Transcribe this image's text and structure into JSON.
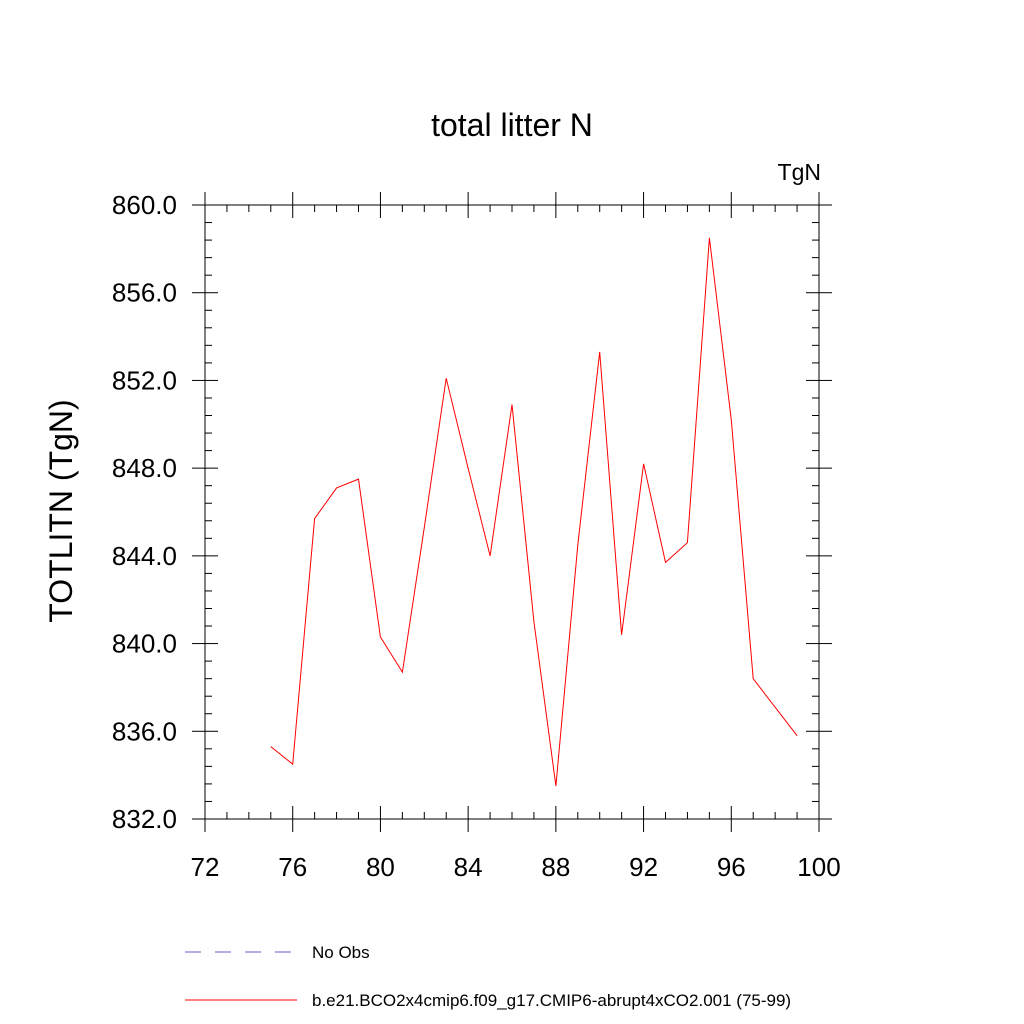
{
  "chart_data": {
    "type": "line",
    "title": "total litter N",
    "units_label": "TgN",
    "ylabel": "TOTLITN  (TgN)",
    "xlabel": "",
    "xlim": [
      72,
      100
    ],
    "ylim": [
      832,
      860
    ],
    "x_ticks": [
      72,
      76,
      80,
      84,
      88,
      92,
      96,
      100
    ],
    "x_tick_labels": [
      "72",
      "76",
      "80",
      "84",
      "88",
      "92",
      "96",
      "100"
    ],
    "y_ticks": [
      832,
      836,
      840,
      844,
      848,
      852,
      856,
      860
    ],
    "y_tick_labels": [
      "832.0",
      "836.0",
      "840.0",
      "844.0",
      "848.0",
      "852.0",
      "856.0",
      "860.0"
    ],
    "grid": false,
    "legend_position": "bottom",
    "series": [
      {
        "name": "b.e21.BCO2x4cmip6.f09_g17.CMIP6-abrupt4xCO2.001 (75-99)",
        "color": "#ff0000",
        "style": "solid",
        "x": [
          75,
          76,
          77,
          78,
          79,
          80,
          81,
          82,
          83,
          84,
          85,
          86,
          87,
          88,
          89,
          90,
          91,
          92,
          93,
          94,
          95,
          96,
          97,
          98,
          99
        ],
        "y": [
          835.3,
          834.5,
          845.7,
          847.1,
          847.5,
          840.3,
          838.7,
          845.3,
          852.1,
          848.0,
          844.0,
          850.9,
          841.0,
          833.5,
          844.5,
          853.3,
          840.4,
          848.2,
          843.7,
          844.6,
          858.5,
          850.2,
          838.4,
          837.1,
          835.8
        ]
      },
      {
        "name": "No Obs",
        "color": "#6a5acd",
        "style": "dashed",
        "x": [],
        "y": []
      }
    ]
  }
}
